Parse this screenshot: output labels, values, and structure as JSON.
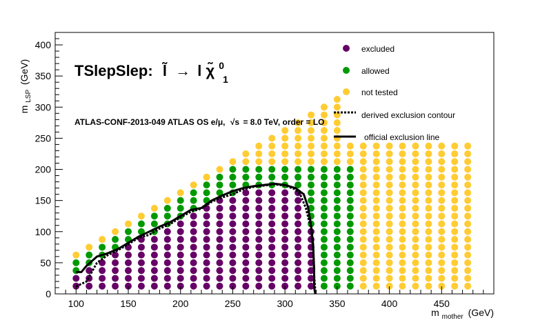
{
  "chart_data": {
    "type": "scatter",
    "title_prefix": "TSlepSlep:",
    "title_process_first": "l̃",
    "title_arrow": "→",
    "title_process_l": "l",
    "title_process_chi": "χ̃",
    "title_process_chi_sup": "0",
    "title_process_chi_sub": "1",
    "subtitle_part1": "ATLAS-CONF-2013-049  ATLAS OS e/μ,",
    "subtitle_sqrt": "√s",
    "subtitle_part2": "=  8.0 TeV, order =  LO",
    "xlabel_main": "m",
    "xlabel_sub": "mother",
    "xlabel_unit": "(GeV)",
    "ylabel_main": "m",
    "ylabel_sub": "LSP",
    "ylabel_unit": "(GeV)",
    "xlim": [
      80,
      500
    ],
    "ylim": [
      0,
      420
    ],
    "x_ticks": [
      100,
      150,
      200,
      250,
      300,
      350,
      400,
      450
    ],
    "y_ticks": [
      0,
      50,
      100,
      150,
      200,
      250,
      300,
      350,
      400
    ],
    "legend": {
      "excluded": "excluded",
      "allowed": "allowed",
      "not_tested": "not tested",
      "derived": "derived exclusion contour",
      "official": "official exclusion line"
    },
    "colors": {
      "excluded": "#660066",
      "allowed": "#009900",
      "not_tested": "#ffcc33",
      "line": "#000000"
    },
    "grid": {
      "x_start": 100,
      "x_step": 12.5,
      "x_count": 31,
      "y_start": 12.5,
      "y_step": 12.5,
      "diagonal_offset": 37.5,
      "y_cap_not_tested": 237.5,
      "y_cap_x_from": 362.5
    },
    "official_line": [
      [
        100,
        35
      ],
      [
        105,
        35
      ],
      [
        110,
        45
      ],
      [
        120,
        60
      ],
      [
        130,
        65
      ],
      [
        140,
        72
      ],
      [
        150,
        82
      ],
      [
        160,
        92
      ],
      [
        170,
        100
      ],
      [
        180,
        108
      ],
      [
        190,
        115
      ],
      [
        200,
        125
      ],
      [
        210,
        135
      ],
      [
        220,
        138
      ],
      [
        230,
        150
      ],
      [
        240,
        158
      ],
      [
        250,
        165
      ],
      [
        260,
        170
      ],
      [
        270,
        173
      ],
      [
        280,
        175
      ],
      [
        290,
        177
      ],
      [
        300,
        175
      ],
      [
        310,
        170
      ],
      [
        318,
        160
      ],
      [
        322,
        140
      ],
      [
        325,
        110
      ],
      [
        327,
        80
      ],
      [
        328,
        40
      ],
      [
        328,
        10
      ],
      [
        329,
        0
      ]
    ],
    "derived_contour": [
      [
        100,
        12
      ],
      [
        110,
        20
      ],
      [
        120,
        50
      ],
      [
        130,
        62
      ],
      [
        140,
        70
      ],
      [
        150,
        80
      ],
      [
        160,
        90
      ],
      [
        170,
        95
      ],
      [
        180,
        105
      ],
      [
        190,
        112
      ],
      [
        200,
        123
      ],
      [
        210,
        132
      ],
      [
        220,
        137
      ],
      [
        230,
        148
      ],
      [
        240,
        155
      ],
      [
        250,
        160
      ],
      [
        260,
        168
      ],
      [
        270,
        172
      ],
      [
        280,
        174
      ],
      [
        290,
        176
      ],
      [
        300,
        174
      ],
      [
        310,
        168
      ],
      [
        315,
        158
      ],
      [
        320,
        138
      ],
      [
        325,
        105
      ],
      [
        327,
        70
      ],
      [
        328,
        30
      ],
      [
        329,
        5
      ]
    ]
  }
}
